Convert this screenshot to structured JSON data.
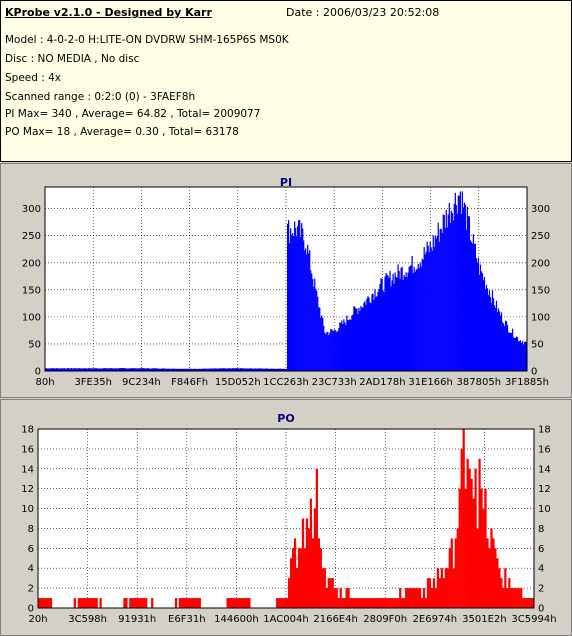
{
  "info": {
    "title": "KProbe v2.1.0 - Designed by Karr",
    "date": "Date : 2006/03/23 20:52:08",
    "lines": [
      "Model : 4-0-2-0 H:LITE-ON DVDRW SHM-165P6S MS0K",
      "Disc : NO MEDIA , No disc",
      "Speed : 4x",
      "Scanned range : 0:2:0 (0) - 3FAEF8h",
      "PI Max= 340 , Average= 64.82 , Total= 2009077",
      "PO Max= 18 , Average= 0.30 , Total= 63178"
    ]
  },
  "colors": {
    "plot_bg": "#ffffff",
    "grid": "#000000",
    "pi_fill": "#0000ff",
    "po_fill": "#ff0000",
    "title": "#000080"
  },
  "chart_data": [
    {
      "type": "bar",
      "title": "PI",
      "ylim": [
        0,
        340
      ],
      "yticks": [
        0,
        50,
        100,
        150,
        200,
        250,
        300
      ],
      "xtick_labels": [
        "80h",
        "3FE35h",
        "9C234h",
        "F846Fh",
        "15D052h",
        "1CC263h",
        "23C733h",
        "2AD178h",
        "31E166h",
        "387805h",
        "3F1885h"
      ],
      "series": [
        {
          "x_pct": [
            0,
            10,
            20,
            30,
            40,
            50,
            50.2,
            52,
            54,
            56,
            58,
            60,
            62,
            64,
            66,
            68,
            70,
            72,
            74,
            76,
            78,
            80,
            82,
            84,
            86,
            88,
            90,
            92,
            94,
            96,
            98,
            100
          ],
          "values": [
            5,
            5,
            5,
            4,
            5,
            4,
            260,
            265,
            240,
            150,
            70,
            75,
            90,
            110,
            125,
            145,
            160,
            175,
            185,
            195,
            210,
            230,
            265,
            300,
            330,
            260,
            190,
            150,
            110,
            80,
            60,
            50
          ]
        }
      ]
    },
    {
      "type": "bar",
      "title": "PO",
      "ylim": [
        0,
        18
      ],
      "yticks": [
        0,
        2,
        4,
        6,
        8,
        10,
        12,
        14,
        16,
        18
      ],
      "xtick_labels": [
        "20h",
        "3C598h",
        "91931h",
        "E6F31h",
        "144600h",
        "1AC004h",
        "2166E4h",
        "2809F0h",
        "2E6974h",
        "3501E2h",
        "3C5994h"
      ],
      "series": [
        {
          "x_pct": [
            0,
            5,
            10,
            15,
            20,
            25,
            30,
            35,
            40,
            45,
            50,
            51,
            53,
            55,
            56,
            57,
            58,
            60,
            62,
            64,
            66,
            68,
            70,
            72,
            74,
            76,
            78,
            80,
            82,
            84,
            85,
            86,
            88,
            90,
            92,
            94,
            96,
            98,
            100
          ],
          "values": [
            1,
            0,
            1,
            0,
            1,
            0,
            1,
            0,
            1,
            0,
            1,
            4,
            7,
            9,
            13,
            7,
            3,
            2,
            2,
            1,
            1,
            1,
            1,
            1,
            2,
            2,
            2,
            3,
            4,
            7,
            11,
            18,
            14,
            9,
            5,
            3,
            2,
            1,
            1
          ]
        }
      ]
    }
  ]
}
